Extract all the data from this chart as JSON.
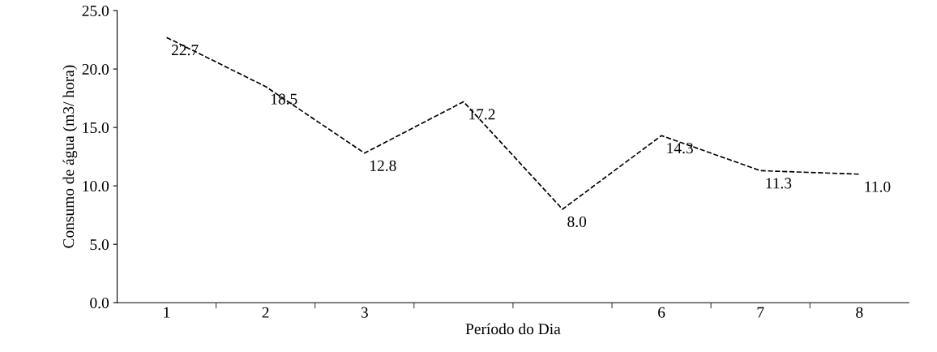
{
  "chart_data": {
    "type": "line",
    "xlabel": "Período do Dia",
    "ylabel": "Consumo de água (m3/ hora)",
    "categories": [
      "1",
      "2",
      "3",
      null,
      null,
      "6",
      "7",
      "8"
    ],
    "series": [
      {
        "color": "#000000",
        "values": [
          22.7,
          18.5,
          12.8,
          17.2,
          8.0,
          14.3,
          11.3,
          11.0
        ],
        "value_labels": [
          "22.7",
          "18.5",
          "12.8",
          "17.2",
          "8.0",
          "14.3",
          "11.3",
          "11.0"
        ]
      }
    ],
    "ylim": [
      0,
      25
    ],
    "yticks": [
      {
        "value": 0,
        "label": "0.0"
      },
      {
        "value": 5,
        "label": "5.0"
      },
      {
        "value": 10,
        "label": "10.0"
      },
      {
        "value": 15,
        "label": "15.0"
      },
      {
        "value": 20,
        "label": "20.0"
      },
      {
        "value": 25,
        "label": "25.0"
      }
    ],
    "grid": false,
    "legend": false,
    "marker": "none",
    "line_style": "dashed"
  }
}
